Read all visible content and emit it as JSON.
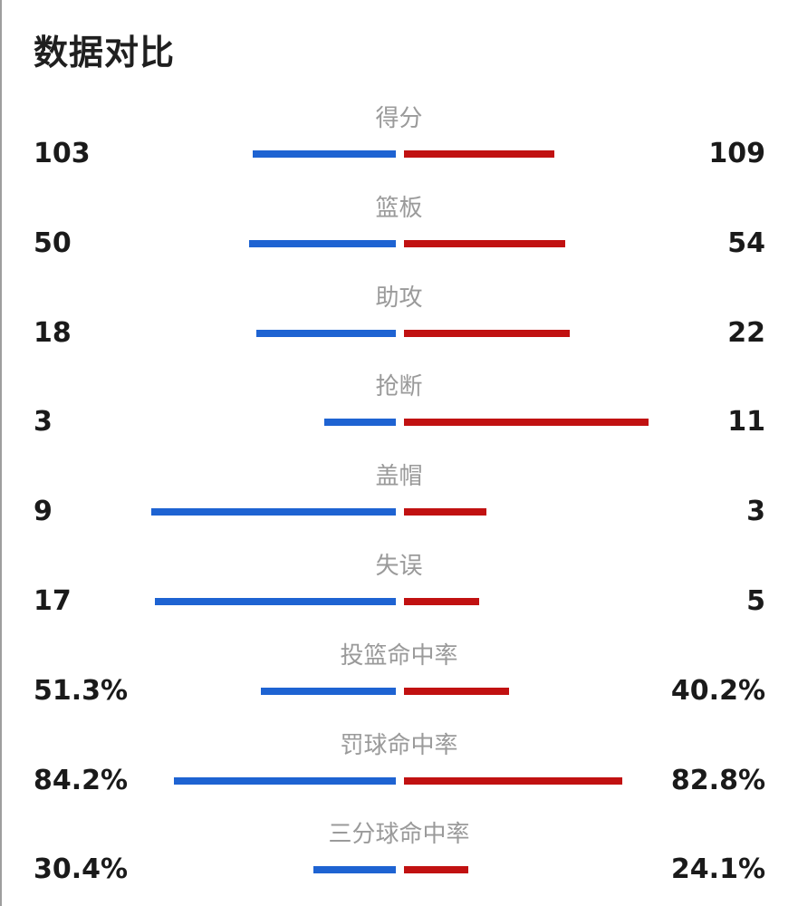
{
  "title": "数据对比",
  "colors": {
    "left_team": "#1e63d2",
    "right_team": "#c11111"
  },
  "stats": [
    {
      "label": "得分",
      "left": "103",
      "right": "109",
      "left_share": 0.38,
      "right_share": 0.4
    },
    {
      "label": "篮板",
      "left": "50",
      "right": "54",
      "left_share": 0.39,
      "right_share": 0.43
    },
    {
      "label": "助攻",
      "left": "18",
      "right": "22",
      "left_share": 0.37,
      "right_share": 0.44
    },
    {
      "label": "抢断",
      "left": "3",
      "right": "11",
      "left_share": 0.19,
      "right_share": 0.65
    },
    {
      "label": "盖帽",
      "left": "9",
      "right": "3",
      "left_share": 0.65,
      "right_share": 0.22
    },
    {
      "label": "失误",
      "left": "17",
      "right": "5",
      "left_share": 0.64,
      "right_share": 0.2
    },
    {
      "label": "投篮命中率",
      "left": "51.3%",
      "right": "40.2%",
      "left_share": 0.36,
      "right_share": 0.28
    },
    {
      "label": "罚球命中率",
      "left": "84.2%",
      "right": "82.8%",
      "left_share": 0.59,
      "right_share": 0.58
    },
    {
      "label": "三分球命中率",
      "left": "30.4%",
      "right": "24.1%",
      "left_share": 0.22,
      "right_share": 0.17
    }
  ]
}
